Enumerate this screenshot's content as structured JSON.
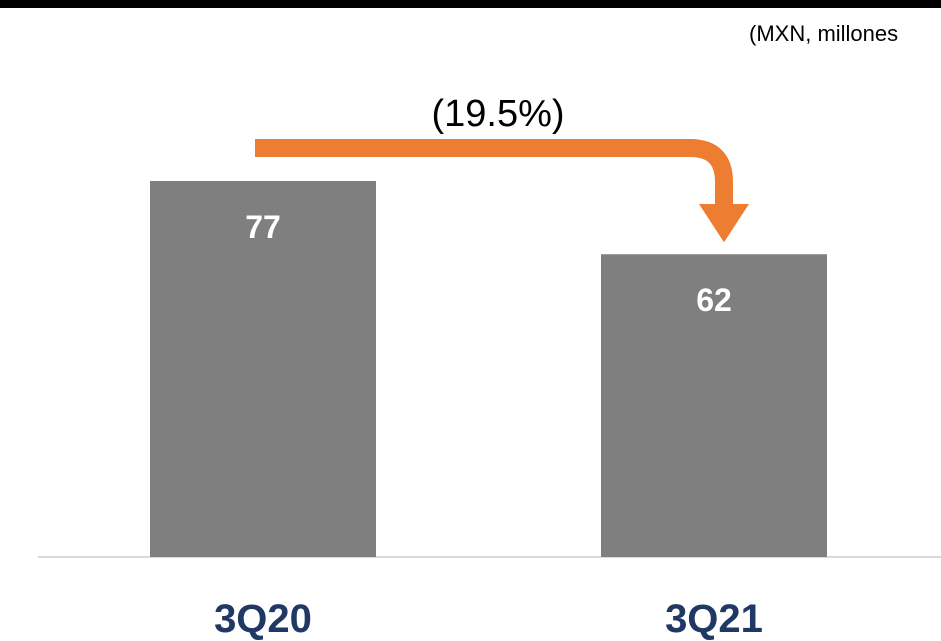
{
  "header": {
    "units_label": "(MXN, millones"
  },
  "colors": {
    "bar": "#7f7f7f",
    "arrow": "#ed7d31",
    "category_label": "#1f3864",
    "value_label": "#ffffff",
    "baseline": "#d9d9d9"
  },
  "chart_data": {
    "type": "bar",
    "categories": [
      "3Q20",
      "3Q21"
    ],
    "values": [
      77,
      62
    ],
    "annotations": [
      {
        "text": "(19.5%)",
        "from": "3Q20",
        "to": "3Q21"
      }
    ]
  }
}
